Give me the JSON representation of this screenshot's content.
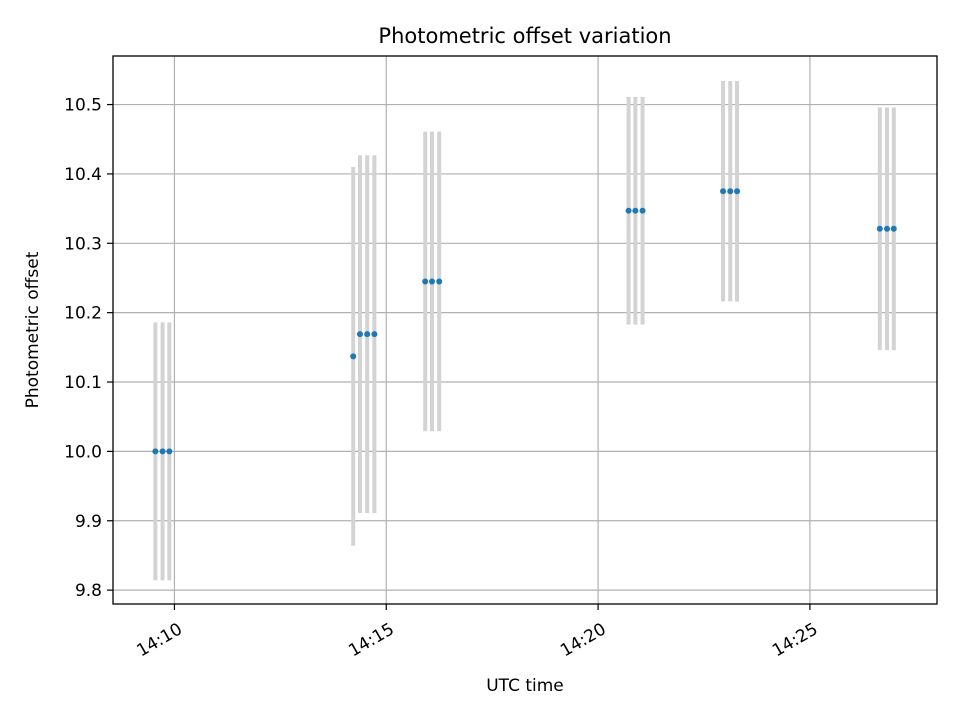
{
  "chart_data": {
    "type": "scatter",
    "title": "Photometric offset variation",
    "xlabel": "UTC time",
    "ylabel": "Photometric offset",
    "x_ticks": [
      "14:10",
      "14:15",
      "14:20",
      "14:25"
    ],
    "x_tick_minutes": [
      10,
      15,
      20,
      25
    ],
    "xlim_minutes": [
      8.55,
      28.0
    ],
    "y_ticks": [
      "9.8",
      "9.9",
      "10.0",
      "10.1",
      "10.2",
      "10.3",
      "10.4",
      "10.5"
    ],
    "ylim": [
      9.78,
      10.57
    ],
    "grid": true,
    "point_color": "#1f77b4",
    "errorbar_color": "#d3d3d3",
    "points": [
      {
        "t": 9.55,
        "y": 10.0,
        "err": 0.186
      },
      {
        "t": 9.72,
        "y": 10.0,
        "err": 0.186
      },
      {
        "t": 9.88,
        "y": 10.0,
        "err": 0.186
      },
      {
        "t": 14.22,
        "y": 10.137,
        "err": 0.273
      },
      {
        "t": 14.38,
        "y": 10.169,
        "err": 0.258
      },
      {
        "t": 14.55,
        "y": 10.169,
        "err": 0.258
      },
      {
        "t": 14.72,
        "y": 10.169,
        "err": 0.258
      },
      {
        "t": 15.92,
        "y": 10.245,
        "err": 0.216
      },
      {
        "t": 16.08,
        "y": 10.245,
        "err": 0.216
      },
      {
        "t": 16.25,
        "y": 10.245,
        "err": 0.216
      },
      {
        "t": 20.72,
        "y": 10.347,
        "err": 0.164
      },
      {
        "t": 20.88,
        "y": 10.347,
        "err": 0.164
      },
      {
        "t": 21.05,
        "y": 10.347,
        "err": 0.164
      },
      {
        "t": 22.95,
        "y": 10.375,
        "err": 0.159
      },
      {
        "t": 23.12,
        "y": 10.375,
        "err": 0.159
      },
      {
        "t": 23.28,
        "y": 10.375,
        "err": 0.159
      },
      {
        "t": 26.65,
        "y": 10.321,
        "err": 0.175
      },
      {
        "t": 26.82,
        "y": 10.321,
        "err": 0.175
      },
      {
        "t": 26.98,
        "y": 10.321,
        "err": 0.175
      }
    ]
  }
}
